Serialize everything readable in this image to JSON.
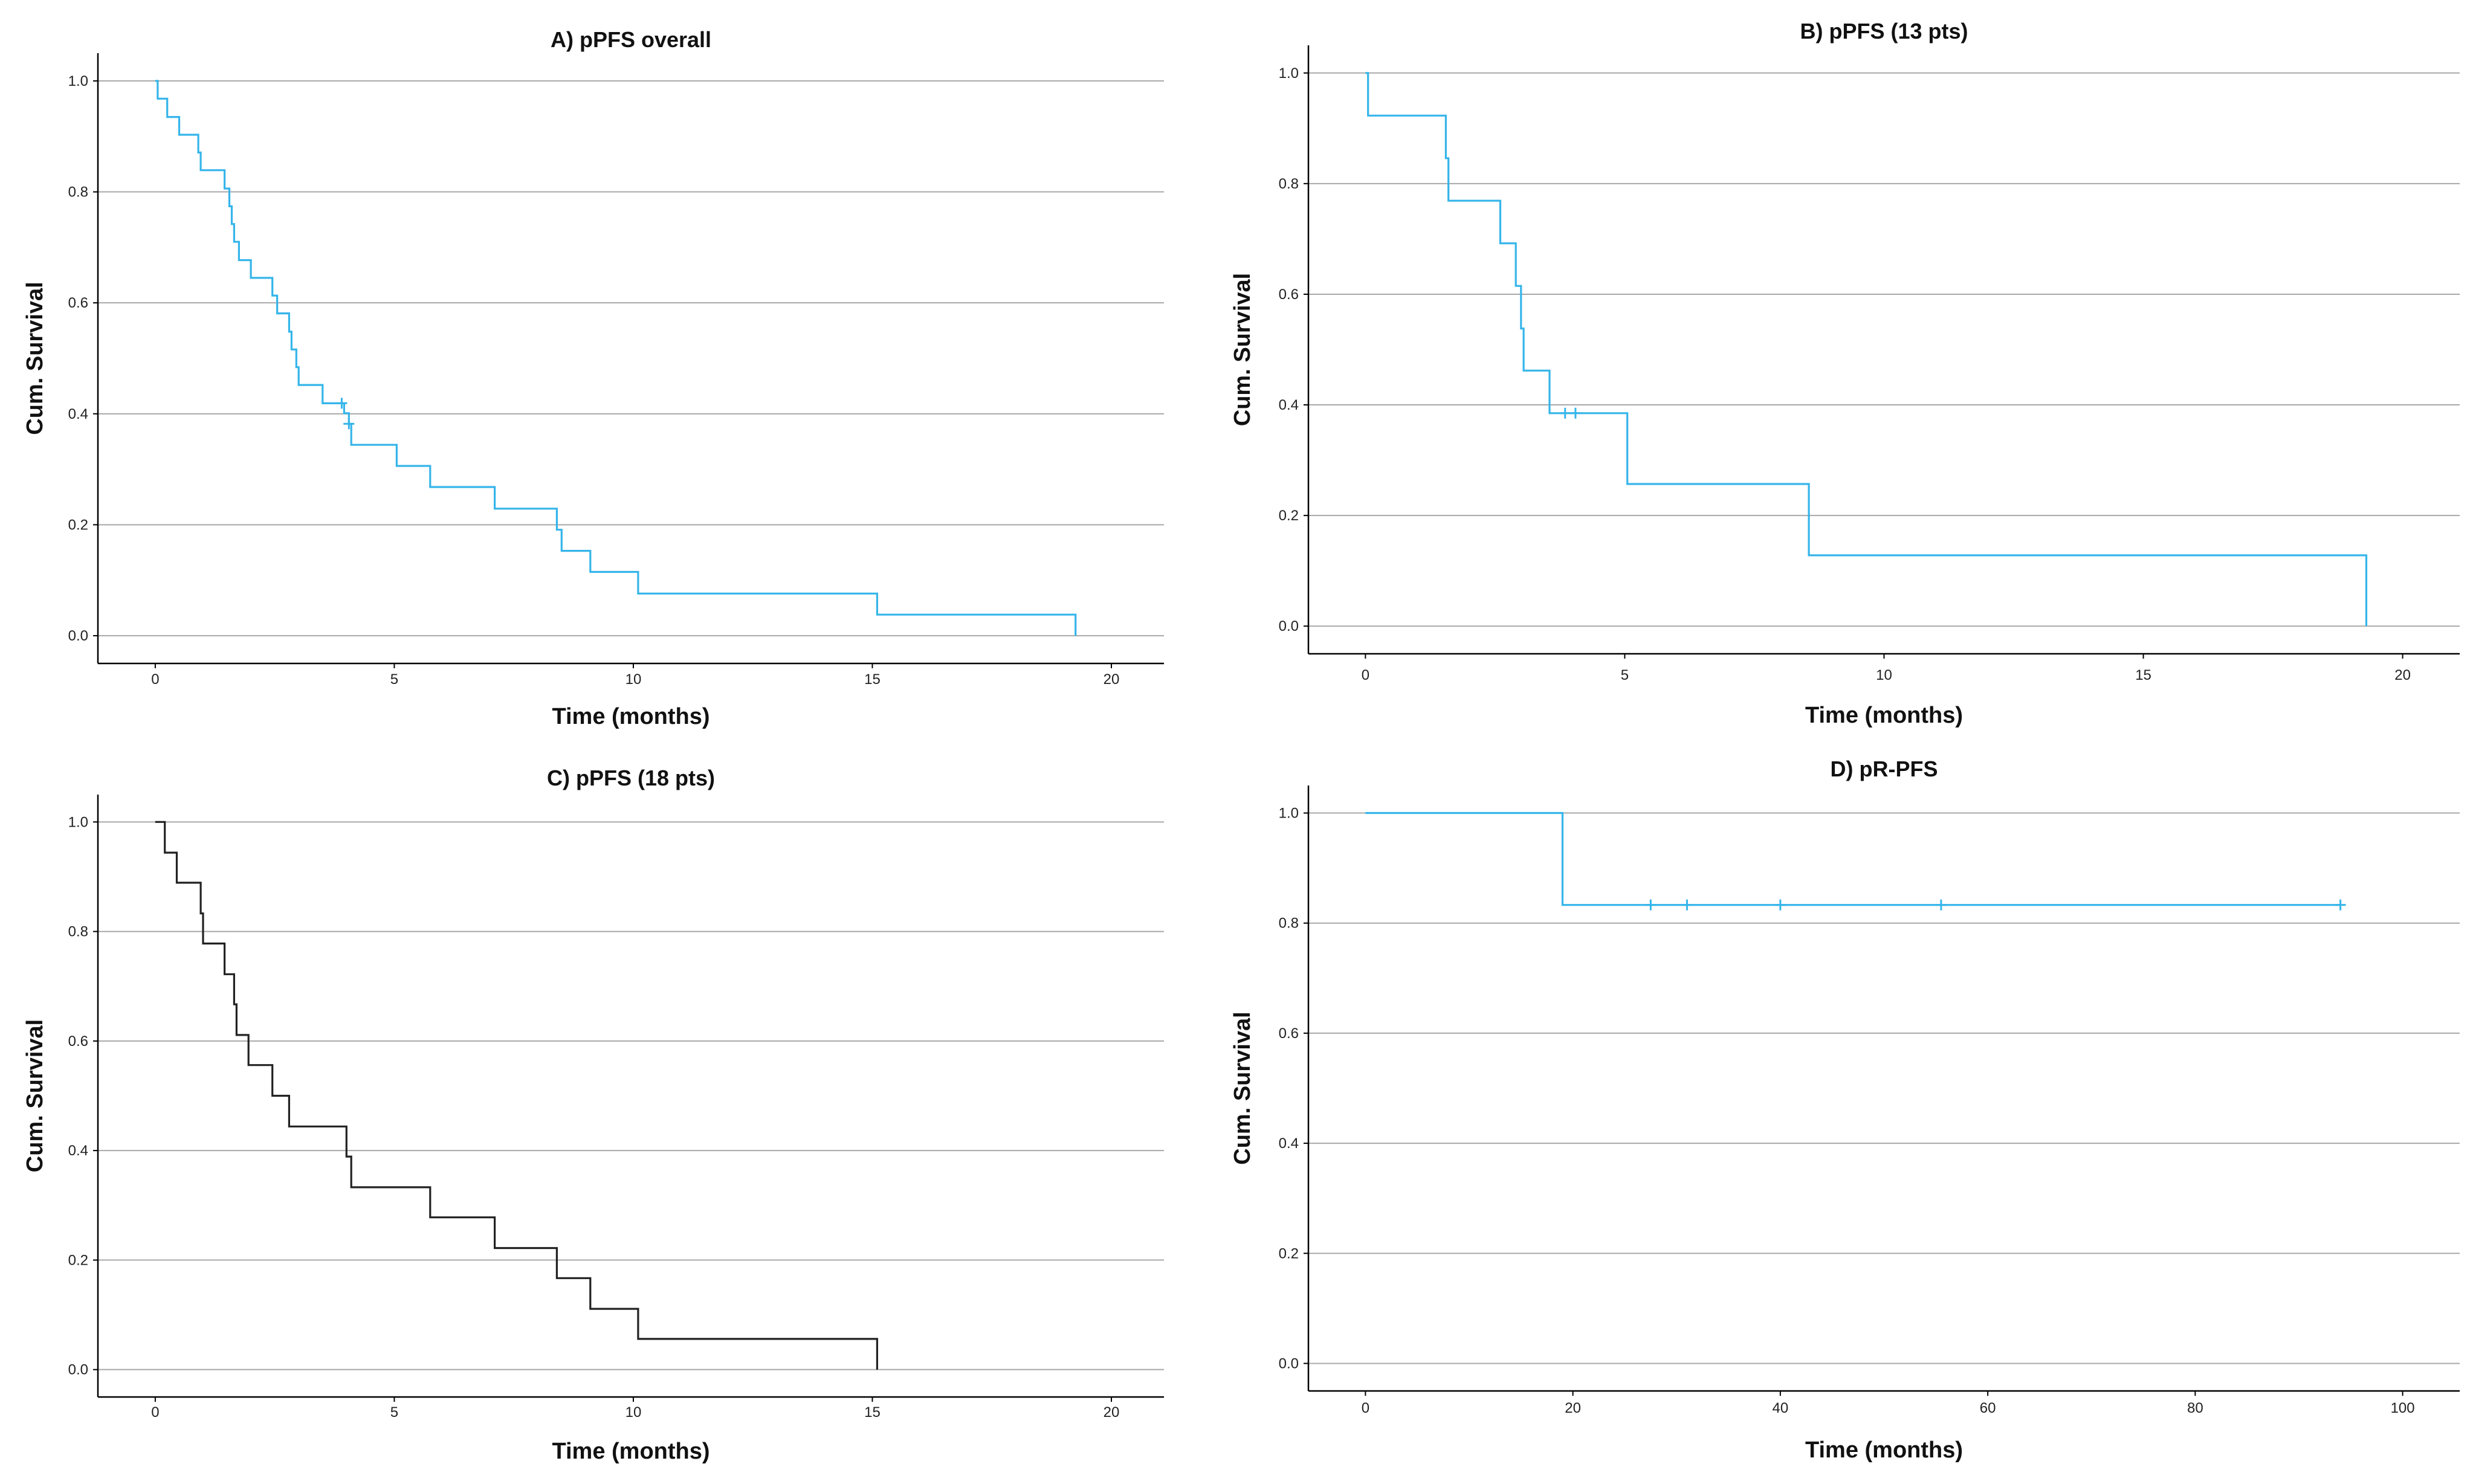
{
  "chart_data": [
    {
      "type": "line",
      "subtype": "kaplan-meier-step",
      "title": "A) pPFS overall",
      "xlabel": "Time (months)",
      "ylabel": "Cum. Survival",
      "xlim": [
        -1.2,
        21.1
      ],
      "ylim": [
        -0.05,
        1.05
      ],
      "xticks": [
        0,
        5,
        10,
        15,
        20
      ],
      "yticks": [
        0.0,
        0.2,
        0.4,
        0.6,
        0.8,
        1.0
      ],
      "xtick_labels": [
        "0",
        "5",
        "10",
        "15",
        "20"
      ],
      "ytick_labels": [
        "0.0",
        "0.2",
        "0.4",
        "0.6",
        "0.8",
        "1.0"
      ],
      "grid": "horizontal",
      "color": "#35b5ea",
      "series": [
        {
          "steps": [
            [
              0,
              1.0
            ],
            [
              0.05,
              0.968
            ],
            [
              0.25,
              0.935
            ],
            [
              0.5,
              0.903
            ],
            [
              0.9,
              0.871
            ],
            [
              0.95,
              0.839
            ],
            [
              1.45,
              0.806
            ],
            [
              1.55,
              0.774
            ],
            [
              1.6,
              0.742
            ],
            [
              1.65,
              0.71
            ],
            [
              1.75,
              0.677
            ],
            [
              2.0,
              0.645
            ],
            [
              2.45,
              0.613
            ],
            [
              2.55,
              0.581
            ],
            [
              2.8,
              0.548
            ],
            [
              2.85,
              0.516
            ],
            [
              2.95,
              0.484
            ],
            [
              3.0,
              0.452
            ],
            [
              3.5,
              0.419
            ],
            [
              3.95,
              0.401
            ],
            [
              4.05,
              0.382
            ],
            [
              4.1,
              0.344
            ],
            [
              5.05,
              0.306
            ],
            [
              5.75,
              0.268
            ],
            [
              7.1,
              0.229
            ],
            [
              8.4,
              0.191
            ],
            [
              8.5,
              0.153
            ],
            [
              9.1,
              0.115
            ],
            [
              10.1,
              0.076
            ],
            [
              15.1,
              0.038
            ],
            [
              19.25,
              0.0
            ]
          ],
          "end": 19.25,
          "censored": [
            [
              3.9,
              0.419
            ],
            [
              4.05,
              0.382
            ]
          ]
        }
      ]
    },
    {
      "type": "line",
      "subtype": "kaplan-meier-step",
      "title": "B) pPFS (13 pts)",
      "xlabel": "Time (months)",
      "ylabel": "Cum. Survival",
      "xlim": [
        -1.1,
        21.1
      ],
      "ylim": [
        -0.05,
        1.05
      ],
      "xticks": [
        0,
        5,
        10,
        15,
        20
      ],
      "yticks": [
        0.0,
        0.2,
        0.4,
        0.6,
        0.8,
        1.0
      ],
      "xtick_labels": [
        "0",
        "5",
        "10",
        "15",
        "20"
      ],
      "ytick_labels": [
        "0.0",
        "0.2",
        "0.4",
        "0.6",
        "0.8",
        "1.0"
      ],
      "grid": "horizontal",
      "color": "#35b5ea",
      "series": [
        {
          "steps": [
            [
              0,
              1.0
            ],
            [
              0.05,
              0.923
            ],
            [
              1.55,
              0.846
            ],
            [
              1.6,
              0.769
            ],
            [
              2.6,
              0.692
            ],
            [
              2.9,
              0.615
            ],
            [
              3.0,
              0.538
            ],
            [
              3.05,
              0.462
            ],
            [
              3.55,
              0.385
            ],
            [
              5.05,
              0.257
            ],
            [
              8.55,
              0.128
            ],
            [
              19.3,
              0.0
            ]
          ],
          "end": 19.3,
          "censored": [
            [
              3.85,
              0.385
            ],
            [
              4.05,
              0.385
            ]
          ]
        }
      ]
    },
    {
      "type": "line",
      "subtype": "kaplan-meier-step",
      "title": "C) pPFS (18 pts)",
      "xlabel": "Time (months)",
      "ylabel": "Cum. Survival",
      "xlim": [
        -1.2,
        21.1
      ],
      "ylim": [
        -0.05,
        1.05
      ],
      "xticks": [
        0,
        5,
        10,
        15,
        20
      ],
      "yticks": [
        0.0,
        0.2,
        0.4,
        0.6,
        0.8,
        1.0
      ],
      "xtick_labels": [
        "0",
        "5",
        "10",
        "15",
        "20"
      ],
      "ytick_labels": [
        "0.0",
        "0.2",
        "0.4",
        "0.6",
        "0.8",
        "1.0"
      ],
      "grid": "horizontal",
      "color": "#222222",
      "series": [
        {
          "steps": [
            [
              0,
              1.0
            ],
            [
              0.2,
              0.944
            ],
            [
              0.45,
              0.889
            ],
            [
              0.95,
              0.833
            ],
            [
              1.0,
              0.778
            ],
            [
              1.45,
              0.722
            ],
            [
              1.65,
              0.667
            ],
            [
              1.7,
              0.611
            ],
            [
              1.95,
              0.556
            ],
            [
              2.45,
              0.5
            ],
            [
              2.8,
              0.444
            ],
            [
              4.0,
              0.389
            ],
            [
              4.1,
              0.333
            ],
            [
              5.75,
              0.278
            ],
            [
              7.1,
              0.222
            ],
            [
              8.4,
              0.167
            ],
            [
              9.1,
              0.111
            ],
            [
              10.1,
              0.056
            ],
            [
              15.1,
              0.0
            ]
          ],
          "end": 15.1,
          "censored": []
        }
      ]
    },
    {
      "type": "line",
      "subtype": "kaplan-meier-step",
      "title": "D) pR-PFS",
      "xlabel": "Time (months)",
      "ylabel": "Cum. Survival",
      "xlim": [
        -5.5,
        105.5
      ],
      "ylim": [
        -0.05,
        1.05
      ],
      "xticks": [
        0,
        20,
        40,
        60,
        80,
        100
      ],
      "yticks": [
        0.0,
        0.2,
        0.4,
        0.6,
        0.8,
        1.0
      ],
      "xtick_labels": [
        "0",
        "20",
        "40",
        "60",
        "80",
        "100"
      ],
      "ytick_labels": [
        "0.0",
        "0.2",
        "0.4",
        "0.6",
        "0.8",
        "1.0"
      ],
      "grid": "horizontal",
      "color": "#35b5ea",
      "series": [
        {
          "steps": [
            [
              0,
              1.0
            ],
            [
              19,
              0.833
            ]
          ],
          "end": 94,
          "censored": [
            [
              27.5,
              0.833
            ],
            [
              31,
              0.833
            ],
            [
              40,
              0.833
            ],
            [
              55.5,
              0.833
            ],
            [
              94,
              0.833
            ]
          ]
        }
      ]
    }
  ]
}
